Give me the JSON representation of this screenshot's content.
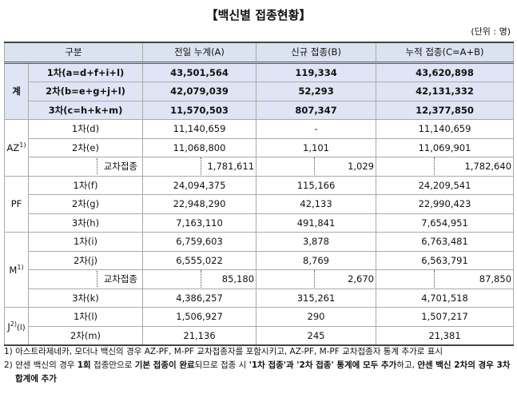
{
  "title": "【백신별 접종현황】",
  "unit": "(단위 : 명)",
  "table": {
    "header": [
      "구분",
      "전일 누계(A)",
      "신규 접종(B)",
      "누적 접종(C=A+B)"
    ],
    "groups": [
      {
        "label": "계",
        "total": true,
        "rows": [
          {
            "cells": [
              "1차(a=d+f+i+l)",
              "43,501,564",
              "119,334",
              "43,620,898"
            ]
          },
          {
            "cells": [
              "2차(b=e+g+j+l)",
              "42,079,039",
              "52,293",
              "42,131,332"
            ]
          },
          {
            "cells": [
              "3차(c=h+k+m)",
              "11,570,503",
              "807,347",
              "12,377,850"
            ]
          }
        ]
      },
      {
        "label": "AZ",
        "note": "1)",
        "rows": [
          {
            "cells": [
              "1차(d)",
              "11,140,659",
              "-",
              "11,140,659"
            ]
          },
          {
            "cells": [
              "2차(e)",
              "11,068,800",
              "1,101",
              "11,069,901"
            ]
          },
          {
            "cells": [
              "교차접종",
              "1,781,611",
              "1,029",
              "1,782,640"
            ],
            "cross": true
          }
        ]
      },
      {
        "label": "PF",
        "rows": [
          {
            "cells": [
              "1차(f)",
              "24,094,375",
              "115,166",
              "24,209,541"
            ]
          },
          {
            "cells": [
              "2차(g)",
              "22,948,290",
              "42,133",
              "22,990,423"
            ]
          },
          {
            "cells": [
              "3차(h)",
              "7,163,110",
              "491,841",
              "7,654,951"
            ]
          }
        ]
      },
      {
        "label": "M",
        "note": "1)",
        "rows": [
          {
            "cells": [
              "1차(i)",
              "6,759,603",
              "3,878",
              "6,763,481"
            ]
          },
          {
            "cells": [
              "2차(j)",
              "6,555,022",
              "8,769",
              "6,563,791"
            ]
          },
          {
            "cells": [
              "교차접종",
              "85,180",
              "2,670",
              "87,850"
            ],
            "cross": true
          },
          {
            "cells": [
              "3차(k)",
              "4,386,257",
              "315,261",
              "4,701,518"
            ]
          }
        ]
      },
      {
        "label": "J",
        "note": "2)",
        "suffix": "(l)",
        "rows": [
          {
            "cells": [
              "1차(l)",
              "1,506,927",
              "290",
              "1,507,217"
            ]
          },
          {
            "cells": [
              "2차(m)",
              "21,136",
              "245",
              "21,381"
            ]
          }
        ]
      }
    ]
  },
  "footnotes": [
    [
      {
        "text": "1) 아스트라제네카, 모더나 백신의 경우 AZ-PF, M-PF 교차접종자를 포함시키고, AZ-PF, M-PF 교차접종자 통계 추가로 표시"
      }
    ],
    [
      {
        "text": "2) 얀센 백신의 경우 "
      },
      {
        "text": "1회",
        "bold": true
      },
      {
        "text": " 접종만으로 "
      },
      {
        "text": "기본 접종이 완료",
        "bold": true
      },
      {
        "text": "되므로 접종 시 "
      },
      {
        "text": "'1차 접종'과 '2차 접종' 통계에 모두 추가",
        "bold": true
      },
      {
        "text": "하고, "
      },
      {
        "text": "얀센 백신 2차의 경우 3차 합계에 추가",
        "bold": true
      }
    ]
  ]
}
